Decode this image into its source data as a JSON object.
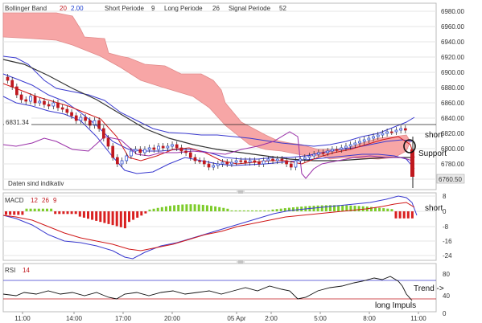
{
  "header": {
    "bollinger_label": "Bollinger Band",
    "bollinger_p1": "20",
    "bollinger_p2": "2.00",
    "short_periode": "Short Periode",
    "short_val": "9",
    "long_periode": "Long Periode",
    "long_val": "26",
    "signal_periode": "Signal Periode",
    "signal_val": "52"
  },
  "main": {
    "price_axis": [
      "6980.00",
      "6960.00",
      "6940.00",
      "6920.00",
      "6900.00",
      "6880.00",
      "6860.00",
      "6840.00",
      "6820.00",
      "6800.00",
      "6780.00",
      "6760.00"
    ],
    "price_marker_left": "6831.34",
    "price_marker_right": "6760.50",
    "disclaimer": "Daten sind indikativ"
  },
  "macd": {
    "label": "MACD",
    "p1": "12",
    "p2": "26",
    "p3": "9",
    "axis": [
      "8",
      "0",
      "-8",
      "-16",
      "-24"
    ]
  },
  "rsi": {
    "label": "RSI",
    "period": "14",
    "axis": [
      "80",
      "40",
      "0"
    ]
  },
  "time_axis": [
    "11:00",
    "14:00",
    "17:00",
    "20:00",
    "05 Apr",
    "2:00",
    "5:00",
    "8:00",
    "11:00"
  ],
  "annotations": {
    "short_main": "short",
    "support": "Support",
    "short_macd": "short",
    "trend": "Trend ->",
    "long_impuls": "long Impuls"
  },
  "colors": {
    "cloud": "#f7a6a6",
    "candle_up": "#1a3ccf",
    "candle_down": "#c0181e",
    "bb_line": "#3a3acf",
    "ma_dark": "#333333",
    "purple": "#9a2fa8",
    "hist_pos": "#7dcc2a",
    "hist_neg": "#d92020"
  }
}
